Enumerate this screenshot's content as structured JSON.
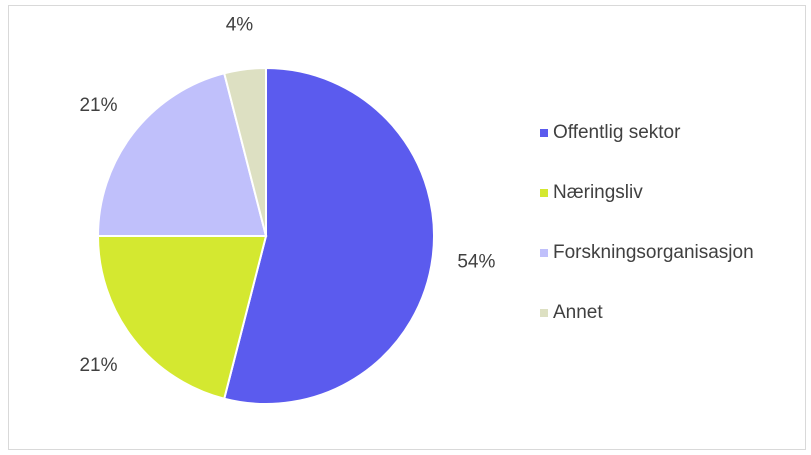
{
  "chart_data": {
    "type": "pie",
    "categories": [
      "Offentlig sektor",
      "Næringsliv",
      "Forskningsorganisasjon",
      "Annet"
    ],
    "values": [
      54,
      21,
      21,
      4
    ],
    "value_labels": [
      "54%",
      "21%",
      "21%",
      "4%"
    ],
    "colors": [
      "#5b5bee",
      "#d4e830",
      "#c0c0fb",
      "#dde0c2"
    ],
    "legend": "right"
  }
}
